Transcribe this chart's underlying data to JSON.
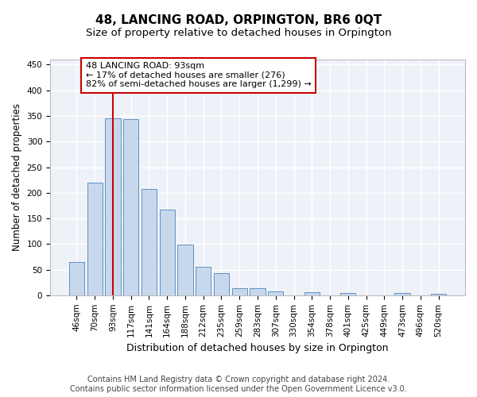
{
  "title": "48, LANCING ROAD, ORPINGTON, BR6 0QT",
  "subtitle": "Size of property relative to detached houses in Orpington",
  "xlabel": "Distribution of detached houses by size in Orpington",
  "ylabel": "Number of detached properties",
  "categories": [
    "46sqm",
    "70sqm",
    "93sqm",
    "117sqm",
    "141sqm",
    "164sqm",
    "188sqm",
    "212sqm",
    "235sqm",
    "259sqm",
    "283sqm",
    "307sqm",
    "330sqm",
    "354sqm",
    "378sqm",
    "401sqm",
    "425sqm",
    "449sqm",
    "473sqm",
    "496sqm",
    "520sqm"
  ],
  "bar_heights": [
    65,
    220,
    345,
    343,
    207,
    167,
    99,
    56,
    43,
    13,
    13,
    7,
    0,
    6,
    0,
    5,
    0,
    0,
    4,
    0,
    3
  ],
  "bar_color": "#c8d8ec",
  "bar_edge_color": "#6090c0",
  "property_line_x": 2,
  "property_line_color": "#cc0000",
  "annotation_text": "48 LANCING ROAD: 93sqm\n← 17% of detached houses are smaller (276)\n82% of semi-detached houses are larger (1,299) →",
  "annotation_box_facecolor": "#ffffff",
  "annotation_box_edgecolor": "#cc0000",
  "ylim": [
    0,
    460
  ],
  "yticks": [
    0,
    50,
    100,
    150,
    200,
    250,
    300,
    350,
    400,
    450
  ],
  "footer_line1": "Contains HM Land Registry data © Crown copyright and database right 2024.",
  "footer_line2": "Contains public sector information licensed under the Open Government Licence v3.0.",
  "bg_color": "#eef2f8",
  "grid_color": "#ffffff",
  "title_fontsize": 11,
  "subtitle_fontsize": 9.5,
  "ylabel_fontsize": 8.5,
  "xlabel_fontsize": 9,
  "tick_fontsize": 7.5,
  "annotation_fontsize": 8,
  "footer_fontsize": 7
}
